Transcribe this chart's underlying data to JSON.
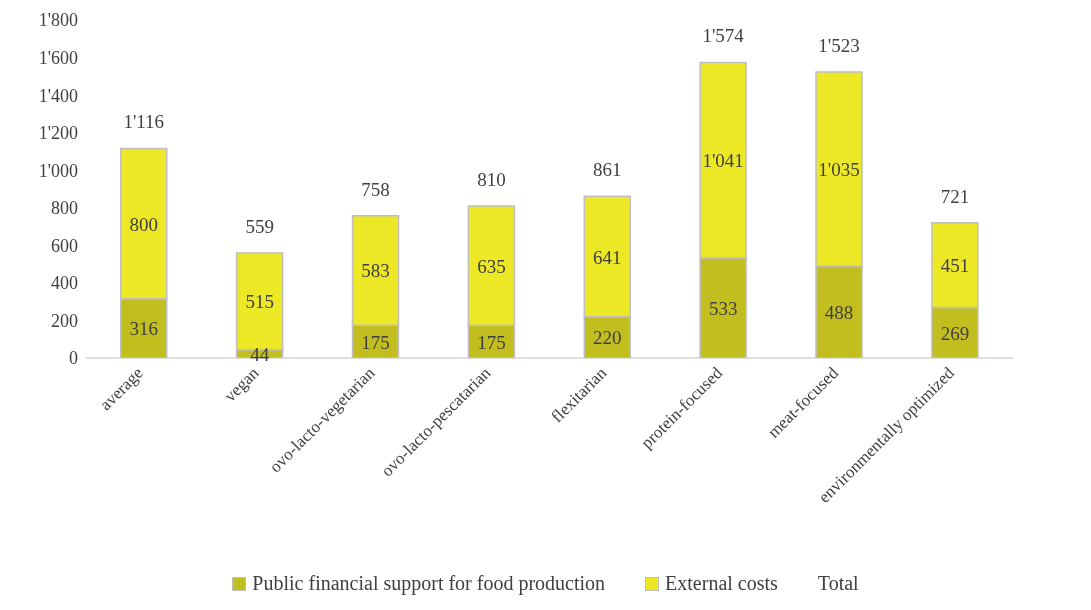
{
  "chart_data": {
    "type": "bar",
    "stacked": true,
    "categories": [
      "average",
      "vegan",
      "ovo-lacto-vegetarian",
      "ovo-lacto-pescatarian",
      "flexitarian",
      "protein-focused",
      "meat-focused",
      "environmentally optimized"
    ],
    "series": [
      {
        "name": "Public financial support for food production",
        "color": "#c3be1f",
        "values": [
          316,
          44,
          175,
          175,
          220,
          533,
          488,
          269
        ],
        "value_labels": [
          "316",
          "44",
          "175",
          "175",
          "220",
          "533",
          "488",
          "269"
        ]
      },
      {
        "name": "External costs",
        "color": "#ede825",
        "values": [
          800,
          515,
          583,
          635,
          641,
          1041,
          1035,
          451
        ],
        "value_labels": [
          "800",
          "515",
          "583",
          "635",
          "641",
          "1'041",
          "1'035",
          "451"
        ]
      }
    ],
    "annotations": [
      "Total"
    ],
    "totals": [
      "1'116",
      "559",
      "758",
      "810",
      "861",
      "1'574",
      "1'523",
      "721"
    ],
    "ylim": [
      0,
      1800
    ],
    "yticks": [
      0,
      200,
      400,
      600,
      800,
      {
        "value": 1000,
        "label": "1'000"
      },
      {
        "value": 1200,
        "label": "1'200"
      },
      {
        "value": 1400,
        "label": "1'400"
      },
      {
        "value": 1600,
        "label": "1'600"
      },
      {
        "value": 1800,
        "label": "1'800"
      }
    ],
    "grid": false,
    "legend": "bottom"
  }
}
